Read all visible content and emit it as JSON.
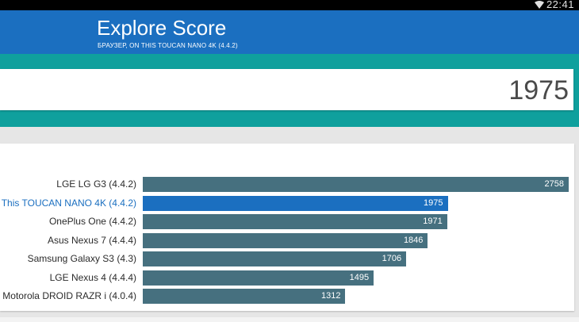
{
  "status_bar": {
    "time": "22:41"
  },
  "header": {
    "title": "Explore Score",
    "subtitle": "БРАУЗЕР, ON THIS TOUCAN NANO 4K (4.4.2)"
  },
  "score": {
    "value": "1975"
  },
  "colors": {
    "header": "#1b6fc0",
    "teal": "#0fa09d",
    "bar": "#46707f",
    "bar_highlight": "#1b6fc0"
  },
  "chart_data": {
    "type": "bar",
    "orientation": "horizontal",
    "xlim": [
      0,
      2758
    ],
    "categories": [
      "LGE LG G3 (4.4.2)",
      "This TOUCAN NANO 4K (4.4.2)",
      "OnePlus One (4.4.2)",
      "Asus Nexus 7 (4.4.4)",
      "Samsung Galaxy S3 (4.3)",
      "LGE Nexus 4 (4.4.4)",
      "Motorola DROID RAZR i (4.0.4)"
    ],
    "values": [
      2758,
      1975,
      1971,
      1846,
      1706,
      1495,
      1312
    ],
    "highlight_index": 1
  }
}
